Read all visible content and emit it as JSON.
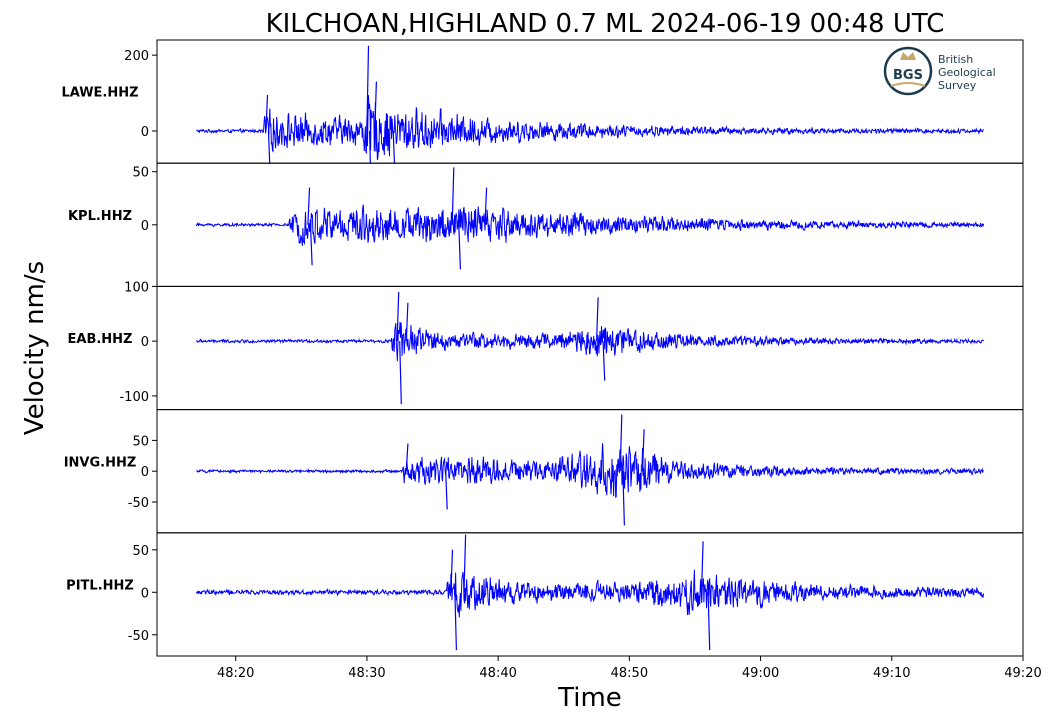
{
  "chart_data": {
    "type": "line",
    "title": "KILCHOAN,HIGHLAND 0.7 ML   2024-06-19 00:48 UTC",
    "xlabel": "Time",
    "ylabel": "Velocity nm/s",
    "x_range": [
      "48:14",
      "49:20"
    ],
    "trace_span": [
      "48:17",
      "49:17"
    ],
    "x_ticks": [
      "48:20",
      "48:30",
      "48:40",
      "48:50",
      "49:00",
      "49:10",
      "49:20"
    ],
    "line_color": "#0000ff",
    "logo": {
      "lines": [
        "British",
        "Geological",
        "Survey"
      ],
      "mark": "BGS"
    },
    "panels": [
      {
        "station": "LAWE.HHZ",
        "ylim": [
          -85,
          240
        ],
        "yticks": [
          0,
          200
        ],
        "ytick_labels": [
          "0",
          "200"
        ],
        "noise": 6,
        "envelope": [
          {
            "t": "48:17",
            "amp": 6
          },
          {
            "t": "48:22",
            "amp": 6
          },
          {
            "t": "48:22.2",
            "amp": 75
          },
          {
            "t": "48:26",
            "amp": 55
          },
          {
            "t": "48:29.5",
            "amp": 55
          },
          {
            "t": "48:30",
            "amp": 130
          },
          {
            "t": "48:32",
            "amp": 90
          },
          {
            "t": "48:40",
            "amp": 45
          },
          {
            "t": "48:50",
            "amp": 22
          },
          {
            "t": "49:00",
            "amp": 12
          },
          {
            "t": "49:17",
            "amp": 8
          }
        ],
        "spikes": [
          {
            "t": "48:22.3",
            "value": 95
          },
          {
            "t": "48:22.5",
            "value": -115
          },
          {
            "t": "48:30",
            "value": 225
          },
          {
            "t": "48:30.2",
            "value": -170
          },
          {
            "t": "48:30.6",
            "value": 130
          },
          {
            "t": "48:32",
            "value": -110
          }
        ]
      },
      {
        "station": "KPL.HHZ",
        "ylim": [
          -58,
          58
        ],
        "yticks": [
          0,
          50
        ],
        "ytick_labels": [
          "0",
          "50"
        ],
        "noise": 1.5,
        "envelope": [
          {
            "t": "48:17",
            "amp": 2
          },
          {
            "t": "48:24",
            "amp": 2
          },
          {
            "t": "48:24.2",
            "amp": 12
          },
          {
            "t": "48:25",
            "amp": 25
          },
          {
            "t": "48:34",
            "amp": 22
          },
          {
            "t": "48:37",
            "amp": 30
          },
          {
            "t": "48:42",
            "amp": 20
          },
          {
            "t": "48:50",
            "amp": 12
          },
          {
            "t": "49:05",
            "amp": 5
          },
          {
            "t": "49:17",
            "amp": 3
          }
        ],
        "spikes": [
          {
            "t": "48:25.5",
            "value": 35
          },
          {
            "t": "48:25.7",
            "value": -38
          },
          {
            "t": "48:36.5",
            "value": 54
          },
          {
            "t": "48:37",
            "value": -42
          },
          {
            "t": "48:39",
            "value": 35
          }
        ]
      },
      {
        "station": "EAB.HHZ",
        "ylim": [
          -125,
          100
        ],
        "yticks": [
          -100,
          0,
          100
        ],
        "ytick_labels": [
          "-100",
          "0",
          "100"
        ],
        "noise": 4,
        "envelope": [
          {
            "t": "48:17",
            "amp": 4
          },
          {
            "t": "48:31.8",
            "amp": 4
          },
          {
            "t": "48:32",
            "amp": 55
          },
          {
            "t": "48:33",
            "amp": 45
          },
          {
            "t": "48:36",
            "amp": 22
          },
          {
            "t": "48:44",
            "amp": 20
          },
          {
            "t": "48:48",
            "amp": 48
          },
          {
            "t": "48:51",
            "amp": 30
          },
          {
            "t": "48:55",
            "amp": 15
          },
          {
            "t": "49:05",
            "amp": 8
          },
          {
            "t": "49:17",
            "amp": 5
          }
        ],
        "spikes": [
          {
            "t": "48:32.3",
            "value": 90
          },
          {
            "t": "48:32.5",
            "value": -115
          },
          {
            "t": "48:33",
            "value": 70
          },
          {
            "t": "48:47.5",
            "value": 80
          },
          {
            "t": "48:48",
            "value": -72
          }
        ]
      },
      {
        "station": "INVG.HHZ",
        "ylim": [
          -100,
          100
        ],
        "yticks": [
          -50,
          0,
          50
        ],
        "ytick_labels": [
          "-50",
          "0",
          "50"
        ],
        "noise": 3,
        "envelope": [
          {
            "t": "48:17",
            "amp": 3
          },
          {
            "t": "48:32.7",
            "amp": 3
          },
          {
            "t": "48:32.8",
            "amp": 28
          },
          {
            "t": "48:36",
            "amp": 35
          },
          {
            "t": "48:44",
            "amp": 25
          },
          {
            "t": "48:49",
            "amp": 65
          },
          {
            "t": "48:51",
            "amp": 50
          },
          {
            "t": "48:54",
            "amp": 20
          },
          {
            "t": "49:05",
            "amp": 8
          },
          {
            "t": "49:17",
            "amp": 6
          }
        ],
        "spikes": [
          {
            "t": "48:33",
            "value": 45
          },
          {
            "t": "48:36",
            "value": -62
          },
          {
            "t": "48:49.3",
            "value": 92
          },
          {
            "t": "48:49.5",
            "value": -88
          },
          {
            "t": "48:51",
            "value": 68
          }
        ]
      },
      {
        "station": "PITL.HHZ",
        "ylim": [
          -75,
          70
        ],
        "yticks": [
          -50,
          0,
          50
        ],
        "ytick_labels": [
          "-50",
          "0",
          "50"
        ],
        "noise": 3,
        "envelope": [
          {
            "t": "48:17",
            "amp": 4
          },
          {
            "t": "48:36",
            "amp": 4
          },
          {
            "t": "48:36.3",
            "amp": 40
          },
          {
            "t": "48:38",
            "amp": 30
          },
          {
            "t": "48:44",
            "amp": 15
          },
          {
            "t": "48:50",
            "amp": 18
          },
          {
            "t": "48:55",
            "amp": 35
          },
          {
            "t": "48:58",
            "amp": 25
          },
          {
            "t": "49:05",
            "amp": 12
          },
          {
            "t": "49:17",
            "amp": 8
          }
        ],
        "spikes": [
          {
            "t": "48:36.4",
            "value": 50
          },
          {
            "t": "48:36.7",
            "value": -68
          },
          {
            "t": "48:37.4",
            "value": 68
          },
          {
            "t": "48:55.5",
            "value": 60
          },
          {
            "t": "48:56",
            "value": -68
          }
        ]
      }
    ]
  }
}
